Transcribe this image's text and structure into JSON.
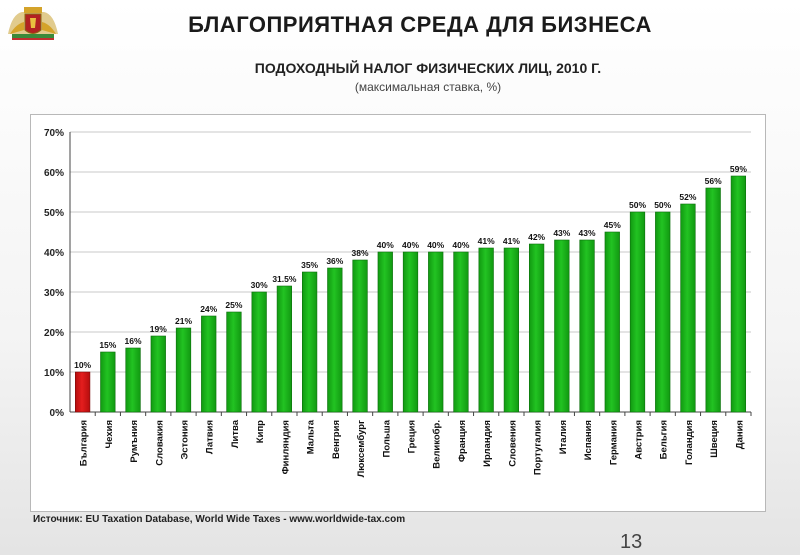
{
  "header": {
    "title": "БЛАГОПРИЯТНАЯ СРЕДА ДЛЯ БИЗНЕСА",
    "subtitle": "ПОДОХОДНЫЙ НАЛОГ ФИЗИЧЕСКИХ ЛИЦ, 2010 Г.",
    "subtitle_note": "(максимальная ставка, %)"
  },
  "logo": {
    "icon": "bulgaria-coat-of-arms-icon"
  },
  "footer": {
    "source": "Источник: EU Taxation Database, World Wide Taxes - www.worldwide-tax.com",
    "page_number": "13"
  },
  "colors": {
    "highlight_bar": "#e41e1e",
    "bar": "#22c322",
    "bar_dark": "#119911"
  },
  "chart_data": {
    "type": "bar",
    "title": "",
    "xlabel": "",
    "ylabel": "",
    "ylim": [
      0,
      70
    ],
    "yticks": [
      "0%",
      "10%",
      "20%",
      "30%",
      "40%",
      "50%",
      "60%",
      "70%"
    ],
    "grid": true,
    "legend": "none",
    "categories": [
      "България",
      "Чехия",
      "Румъния",
      "Словакия",
      "Эстония",
      "Латвия",
      "Литва",
      "Кипр",
      "Финляндия",
      "Мальта",
      "Венгрия",
      "Люксембург",
      "Польша",
      "Греция",
      "Великобр.",
      "Франция",
      "Ирландия",
      "Словения",
      "Португалия",
      "Италия",
      "Испания",
      "Германия",
      "Австрия",
      "Бельгия",
      "Голандия",
      "Швеция",
      "Дания"
    ],
    "values": [
      10,
      15,
      16,
      19,
      21,
      24,
      25,
      30,
      31.5,
      35,
      36,
      38,
      40,
      40,
      40,
      40,
      41,
      41,
      42,
      43,
      43,
      45,
      50,
      50,
      52,
      56,
      59
    ],
    "labels": [
      "10%",
      "15%",
      "16%",
      "19%",
      "21%",
      "24%",
      "25%",
      "30%",
      "31.5%",
      "35%",
      "36%",
      "38%",
      "40%",
      "40%",
      "40%",
      "40%",
      "41%",
      "41%",
      "42%",
      "43%",
      "43%",
      "45%",
      "50%",
      "50%",
      "52%",
      "56%",
      "59%"
    ],
    "highlight_index": 0
  }
}
